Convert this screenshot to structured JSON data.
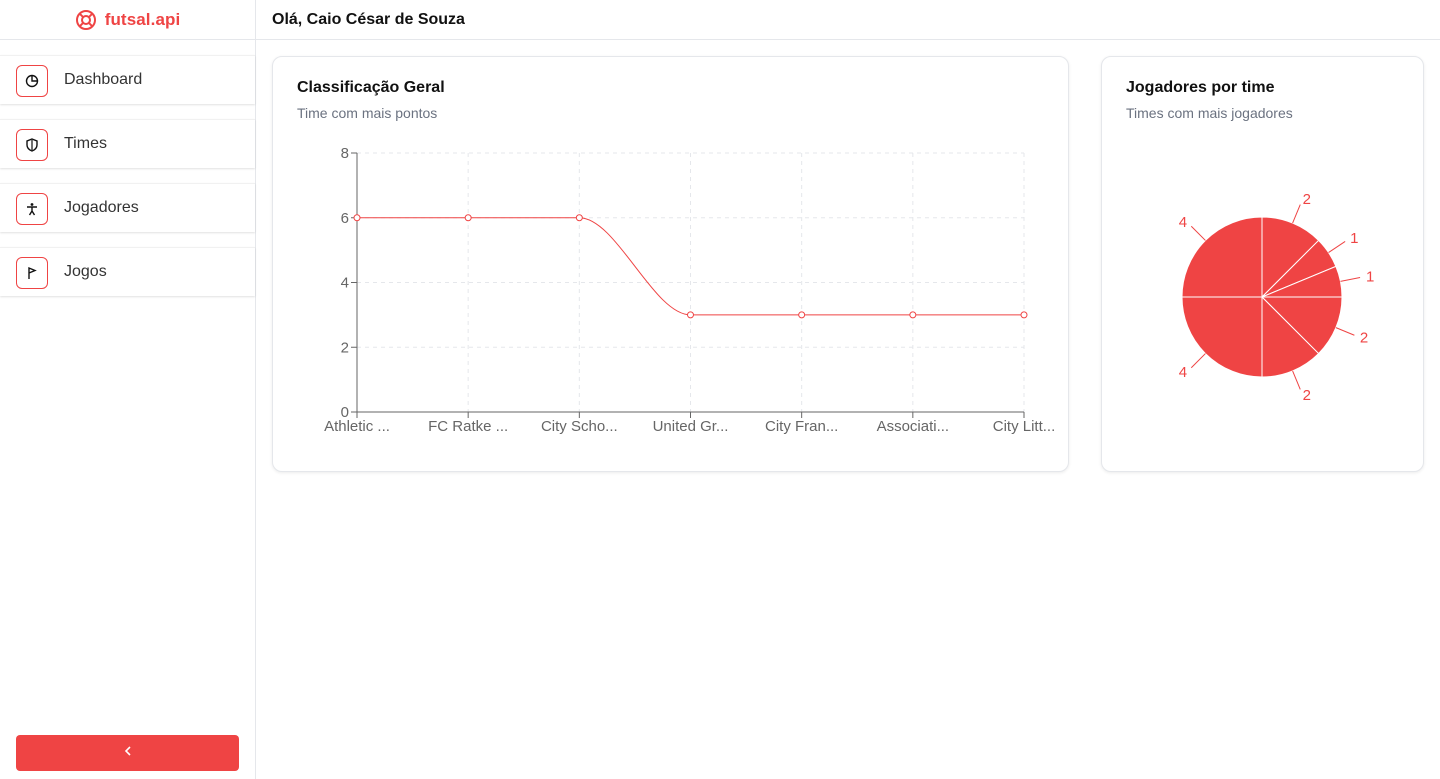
{
  "brand": {
    "name": "futsal.api",
    "color": "#ef4444"
  },
  "sidebar": {
    "items": [
      {
        "label": "Dashboard",
        "icon": "pie-chart-icon"
      },
      {
        "label": "Times",
        "icon": "shield-icon"
      },
      {
        "label": "Jogadores",
        "icon": "person-icon"
      },
      {
        "label": "Jogos",
        "icon": "flag-icon"
      }
    ],
    "collapse_icon": "chevron-left-icon"
  },
  "header": {
    "greeting": "Olá, Caio César de Souza"
  },
  "cards": {
    "standings": {
      "title": "Classificação Geral",
      "subtitle": "Time com mais pontos"
    },
    "players": {
      "title": "Jogadores por time",
      "subtitle": "Times com mais jogadores"
    }
  },
  "chart_data": [
    {
      "type": "line",
      "categories": [
        "Athletic ...",
        "FC Ratke ...",
        "City Scho...",
        "United Gr...",
        "City Fran...",
        "Associati...",
        "City Litt..."
      ],
      "series": [
        {
          "values": [
            6,
            6,
            6,
            3,
            3,
            3,
            3
          ]
        }
      ],
      "ylim": [
        0,
        8
      ],
      "yticks": [
        0,
        2,
        4,
        6,
        8
      ],
      "grid": true,
      "color": "#ef4444"
    },
    {
      "type": "pie",
      "values": [
        2,
        1,
        1,
        2,
        2,
        4,
        4
      ],
      "data_labels": [
        "2",
        "1",
        "1",
        "2",
        "2",
        "4",
        "4"
      ],
      "color": "#ef4444"
    }
  ]
}
